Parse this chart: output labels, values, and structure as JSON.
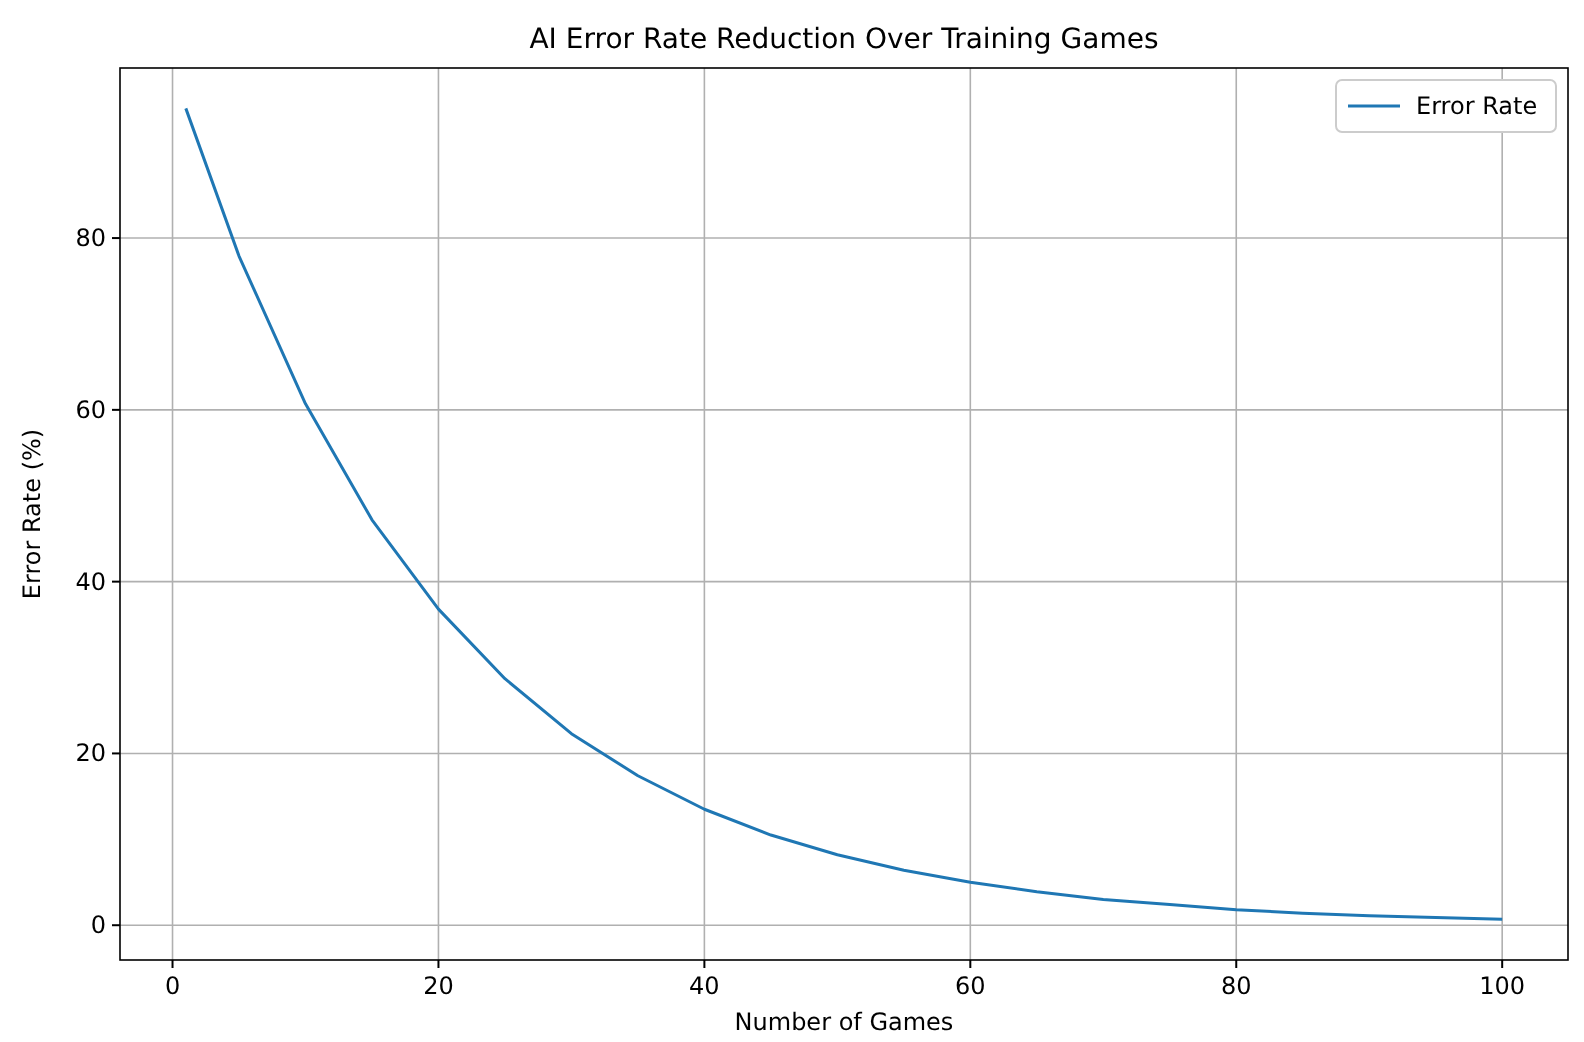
{
  "chart_data": {
    "type": "line",
    "title": "AI Error Rate Reduction Over Training Games",
    "xlabel": "Number of Games",
    "ylabel": "Error Rate (%)",
    "x": [
      1,
      5,
      10,
      15,
      20,
      25,
      30,
      35,
      40,
      45,
      50,
      55,
      60,
      65,
      70,
      75,
      80,
      85,
      90,
      95,
      100
    ],
    "series": [
      {
        "name": "Error Rate",
        "color": "#1f77b4",
        "values": [
          95.1,
          77.9,
          60.7,
          47.2,
          36.8,
          28.7,
          22.3,
          17.4,
          13.5,
          10.5,
          8.2,
          6.4,
          5.0,
          3.9,
          3.0,
          2.4,
          1.8,
          1.4,
          1.1,
          0.9,
          0.7
        ]
      }
    ],
    "xlim": [
      -3.95,
      104.95
    ],
    "xticks": [
      0,
      20,
      40,
      60,
      80,
      100
    ],
    "ylim": [
      -4.05,
      99.8
    ],
    "yticks": [
      0,
      20,
      40,
      60,
      80
    ],
    "grid": true,
    "legend": "top right",
    "marker": "none",
    "line_style": "solid"
  }
}
